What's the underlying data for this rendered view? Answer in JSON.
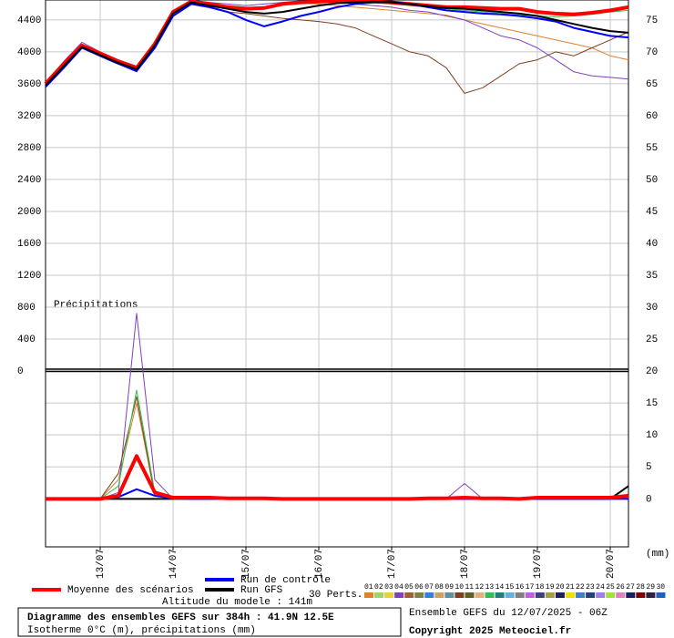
{
  "chart_data": [
    {
      "type": "line",
      "title": "Diagramme des ensembles GEFS sur 384h : 41.9N 12.5E",
      "subtitle": "Isotherme 0°C (m), précipitations (mm)",
      "model_altitude": "Altitude du modele : 141m",
      "run": "Ensemble GEFS du 12/07/2025 - 06Z",
      "copyright": "Copyright 2025 Meteociel.fr",
      "perturbations_label": "30 Perts.",
      "perturbation_swatches": [
        {
          "label": "01",
          "color": "#e08030"
        },
        {
          "label": "02",
          "color": "#a0d070"
        },
        {
          "label": "03",
          "color": "#e8d040"
        },
        {
          "label": "04",
          "color": "#8040c0"
        },
        {
          "label": "05",
          "color": "#a06030"
        },
        {
          "label": "06",
          "color": "#808040"
        },
        {
          "label": "07",
          "color": "#3080e0"
        },
        {
          "label": "08",
          "color": "#d0a060"
        },
        {
          "label": "09",
          "color": "#6090a0"
        },
        {
          "label": "10",
          "color": "#804020"
        },
        {
          "label": "11",
          "color": "#606020"
        },
        {
          "label": "12",
          "color": "#e0b080"
        },
        {
          "label": "13",
          "color": "#30c050"
        },
        {
          "label": "14",
          "color": "#208080"
        },
        {
          "label": "15",
          "color": "#60b0e0"
        },
        {
          "label": "16",
          "color": "#808080"
        },
        {
          "label": "17",
          "color": "#c060e0"
        },
        {
          "label": "18",
          "color": "#404080"
        },
        {
          "label": "19",
          "color": "#a0a040"
        },
        {
          "label": "20",
          "color": "#202060"
        },
        {
          "label": "21",
          "color": "#f0e000"
        },
        {
          "label": "22",
          "color": "#4080c0"
        },
        {
          "label": "23",
          "color": "#204080"
        },
        {
          "label": "24",
          "color": "#a080e0"
        },
        {
          "label": "25",
          "color": "#a0e040"
        },
        {
          "label": "26",
          "color": "#e080c0"
        },
        {
          "label": "27",
          "color": "#102060"
        },
        {
          "label": "28",
          "color": "#800000"
        },
        {
          "label": "29",
          "color": "#302040"
        },
        {
          "label": "30",
          "color": "#2060c0"
        }
      ],
      "x": [
        0,
        6,
        12,
        18,
        24,
        30,
        36,
        42,
        48,
        54,
        60,
        66,
        72,
        78,
        84,
        90,
        96,
        102,
        108,
        114,
        120,
        126,
        132,
        138,
        144,
        150,
        156,
        162,
        168,
        174,
        180,
        186,
        192
      ],
      "xlim": [
        0,
        192
      ],
      "ylim": [
        0,
        4650
      ],
      "yticks": [
        0,
        400,
        800,
        1200,
        1600,
        2000,
        2400,
        2800,
        3200,
        3600,
        4000,
        4400
      ],
      "y2lim": [
        20,
        78.125
      ],
      "y2ticks": [
        25,
        30,
        35,
        40,
        45,
        50,
        55,
        60,
        65,
        70,
        75
      ],
      "grid": true,
      "perturbations": [
        {
          "color": "#e08030",
          "values": [
            3590,
            3840,
            4070,
            3970,
            3870,
            3790,
            4090,
            4490,
            4630,
            4600,
            4570,
            4550,
            4560,
            4590,
            4610,
            4600,
            4580,
            4560,
            4540,
            4520,
            4500,
            4480,
            4460,
            4400,
            4350,
            4300,
            4250,
            4200,
            4150,
            4100,
            4050,
            3950,
            3900
          ]
        },
        {
          "color": "#8040c0",
          "values": [
            3600,
            3880,
            4120,
            4000,
            3900,
            3820,
            4120,
            4520,
            4650,
            4620,
            4600,
            4580,
            4600,
            4620,
            4640,
            4640,
            4620,
            4600,
            4580,
            4560,
            4520,
            4500,
            4450,
            4400,
            4300,
            4200,
            4150,
            4050,
            3900,
            3750,
            3700,
            3680,
            3660
          ]
        },
        {
          "color": "#804020",
          "values": [
            3560,
            3830,
            4050,
            3950,
            3850,
            3750,
            4100,
            4480,
            4600,
            4560,
            4500,
            4480,
            4450,
            4420,
            4400,
            4380,
            4350,
            4300,
            4200,
            4100,
            4000,
            3950,
            3800,
            3480,
            3550,
            3700,
            3850,
            3900,
            4000,
            3950,
            4050,
            4150,
            4250
          ]
        },
        {
          "color": "#30c050",
          "values": [
            3620,
            3860,
            4090,
            3990,
            3890,
            3800,
            4100,
            4500,
            4620,
            4600,
            4580,
            4560,
            4560,
            4600,
            4620,
            4640,
            4640,
            4630,
            4620,
            4600,
            4580,
            4560,
            4540,
            4520,
            4500,
            4480,
            4460,
            4450,
            4440,
            4450,
            4470,
            4500,
            4520
          ]
        }
      ],
      "series": [
        {
          "name": "Moyenne des scénarios",
          "color": "#ff0000",
          "width": 4,
          "values": [
            3600,
            3850,
            4080,
            3980,
            3880,
            3800,
            4100,
            4500,
            4630,
            4600,
            4560,
            4540,
            4550,
            4600,
            4620,
            4630,
            4640,
            4640,
            4630,
            4620,
            4600,
            4580,
            4560,
            4560,
            4550,
            4540,
            4540,
            4500,
            4480,
            4470,
            4490,
            4520,
            4560
          ]
        },
        {
          "name": "Run de contrôle",
          "color": "#0000ff",
          "width": 2,
          "values": [
            3560,
            3800,
            4050,
            3950,
            3850,
            3760,
            4050,
            4450,
            4600,
            4560,
            4500,
            4400,
            4320,
            4380,
            4450,
            4500,
            4560,
            4600,
            4620,
            4630,
            4600,
            4560,
            4520,
            4500,
            4480,
            4470,
            4450,
            4420,
            4380,
            4300,
            4250,
            4200,
            4180
          ]
        },
        {
          "name": "Run GFS",
          "color": "#000000",
          "width": 2,
          "values": [
            3580,
            3820,
            4060,
            3960,
            3860,
            3780,
            4080,
            4480,
            4620,
            4580,
            4540,
            4500,
            4480,
            4500,
            4540,
            4580,
            4610,
            4620,
            4630,
            4620,
            4600,
            4570,
            4550,
            4540,
            4520,
            4500,
            4480,
            4450,
            4400,
            4350,
            4300,
            4260,
            4240
          ]
        }
      ]
    },
    {
      "type": "line",
      "annotation": "Précipitations",
      "unit": "(mm)",
      "x": [
        0,
        6,
        12,
        18,
        24,
        30,
        36,
        42,
        48,
        54,
        60,
        66,
        72,
        78,
        84,
        90,
        96,
        102,
        108,
        114,
        120,
        126,
        132,
        138,
        144,
        150,
        156,
        162,
        168,
        174,
        180,
        186,
        192
      ],
      "xlim": [
        0,
        192
      ],
      "xticks": [
        {
          "value": 18,
          "label": "13/07"
        },
        {
          "value": 42,
          "label": "14/07"
        },
        {
          "value": 66,
          "label": "15/07"
        },
        {
          "value": 90,
          "label": "16/07"
        },
        {
          "value": 114,
          "label": "17/07"
        },
        {
          "value": 138,
          "label": "18/07"
        },
        {
          "value": 162,
          "label": "19/07"
        },
        {
          "value": 186,
          "label": "20/07"
        }
      ],
      "y2lim": [
        -7.5,
        20
      ],
      "y2ticks": [
        0,
        5,
        10,
        15,
        20
      ],
      "grid": true,
      "perturbations": [
        {
          "color": "#e08030",
          "values": [
            0,
            0,
            0,
            0,
            3,
            15,
            0.5,
            0,
            0,
            0,
            0,
            0,
            0,
            0,
            0,
            0,
            0,
            0,
            0,
            0,
            0,
            0,
            0,
            0,
            0,
            0,
            0,
            0,
            0.2,
            0.2,
            0.2,
            0.2,
            0.2
          ]
        },
        {
          "color": "#8040c0",
          "values": [
            0,
            0,
            0,
            0,
            1,
            29,
            3,
            0,
            0,
            0,
            0,
            0,
            0,
            0,
            0,
            0,
            0,
            0,
            0,
            0,
            0,
            0,
            0,
            2.4,
            0,
            0,
            0,
            0,
            0,
            0,
            0,
            0,
            0
          ]
        },
        {
          "color": "#804020",
          "values": [
            0,
            0,
            0,
            0,
            4,
            16,
            0.5,
            0,
            0,
            0,
            0,
            0,
            0,
            0,
            0,
            0,
            0,
            0,
            0,
            0,
            0,
            0,
            0,
            0,
            0,
            0,
            0,
            0,
            0,
            0,
            0,
            0,
            0
          ]
        },
        {
          "color": "#30c050",
          "values": [
            0,
            0,
            0,
            0,
            2,
            17,
            1,
            0,
            0,
            0,
            0,
            0,
            0,
            0,
            0,
            0,
            0,
            0,
            0,
            0,
            0,
            0,
            0,
            0,
            0,
            0,
            0,
            0,
            0,
            0,
            0,
            0.3,
            0
          ]
        }
      ],
      "series": [
        {
          "color": "#000000",
          "width": 2,
          "values": [
            0,
            0,
            0,
            0,
            0,
            0,
            0,
            0,
            0,
            0,
            0,
            0,
            0,
            0,
            0,
            0,
            0,
            0,
            0,
            0,
            0,
            0,
            0,
            0,
            0,
            0,
            0,
            0,
            0,
            0,
            0,
            0,
            2
          ]
        },
        {
          "color": "#0000ff",
          "width": 2,
          "values": [
            0,
            0,
            0,
            0,
            0.3,
            1.5,
            0.5,
            0.1,
            0,
            0,
            0,
            0,
            0,
            0,
            0,
            0,
            0,
            0,
            0,
            0,
            0,
            0,
            0,
            0,
            0,
            0,
            0,
            0,
            0,
            0,
            0,
            0,
            0
          ]
        },
        {
          "color": "#ff0000",
          "width": 4,
          "values": [
            0,
            0,
            0,
            0,
            0.5,
            6.7,
            1,
            0.2,
            0.2,
            0.2,
            0.1,
            0.1,
            0.1,
            0,
            0,
            0,
            0,
            0,
            0,
            0,
            0,
            0.1,
            0.1,
            0.2,
            0.1,
            0.1,
            0,
            0.2,
            0.2,
            0.2,
            0.2,
            0.2,
            0.5
          ]
        }
      ]
    }
  ]
}
